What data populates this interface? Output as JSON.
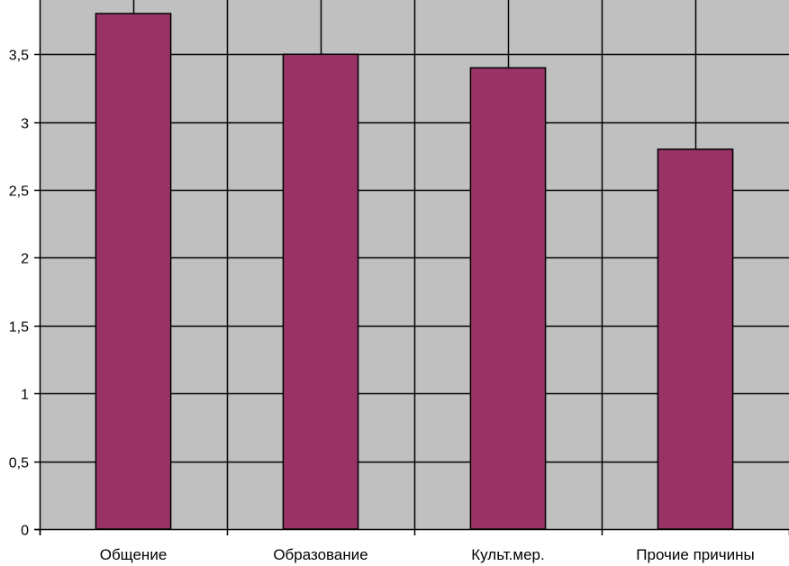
{
  "chart_data": {
    "type": "bar",
    "categories": [
      "Общение",
      "Образование",
      "Культ.мер.",
      "Прочие причины"
    ],
    "values": [
      3.8,
      3.5,
      3.4,
      2.8
    ],
    "ylim": [
      0,
      3.9
    ],
    "yticks": [
      0,
      0.5,
      1,
      1.5,
      2,
      2.5,
      3,
      3.5
    ],
    "ytick_labels": [
      "0",
      "0,5",
      "1",
      "1,5",
      "2",
      "2,5",
      "3",
      "3,5"
    ],
    "grid": true,
    "legend": "none",
    "colors": {
      "plot_background": "#c0c0c0",
      "bar_fill": "#993366",
      "bar_stroke": "#000000",
      "grid": "#000000"
    }
  }
}
